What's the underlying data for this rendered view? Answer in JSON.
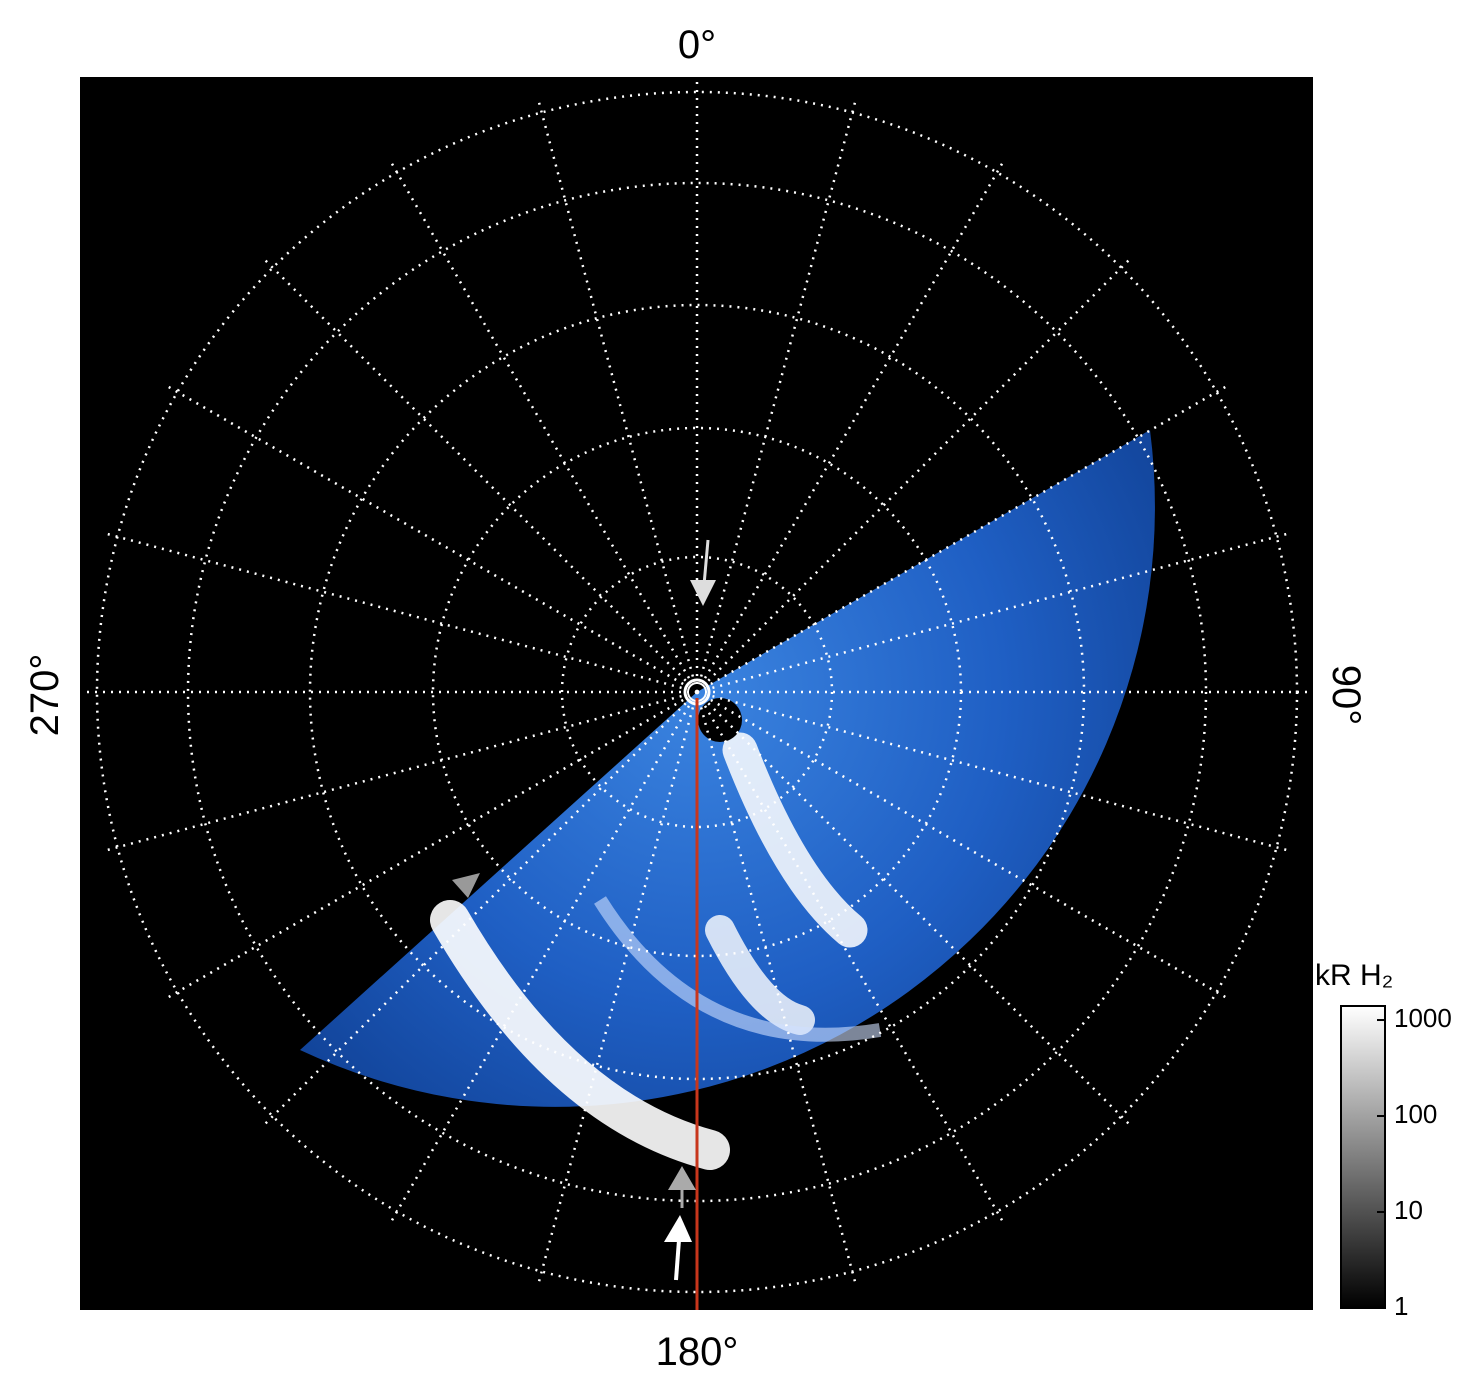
{
  "chart_data": {
    "type": "polar-image",
    "azimuth_labels": {
      "top": "0°",
      "right": "90°",
      "bottom": "180°",
      "left": "270°"
    },
    "colorbar": {
      "label": "kR H₂",
      "log": true,
      "lim": [
        1,
        1400
      ],
      "ticks": [
        1,
        10,
        100,
        1000
      ]
    }
  }
}
